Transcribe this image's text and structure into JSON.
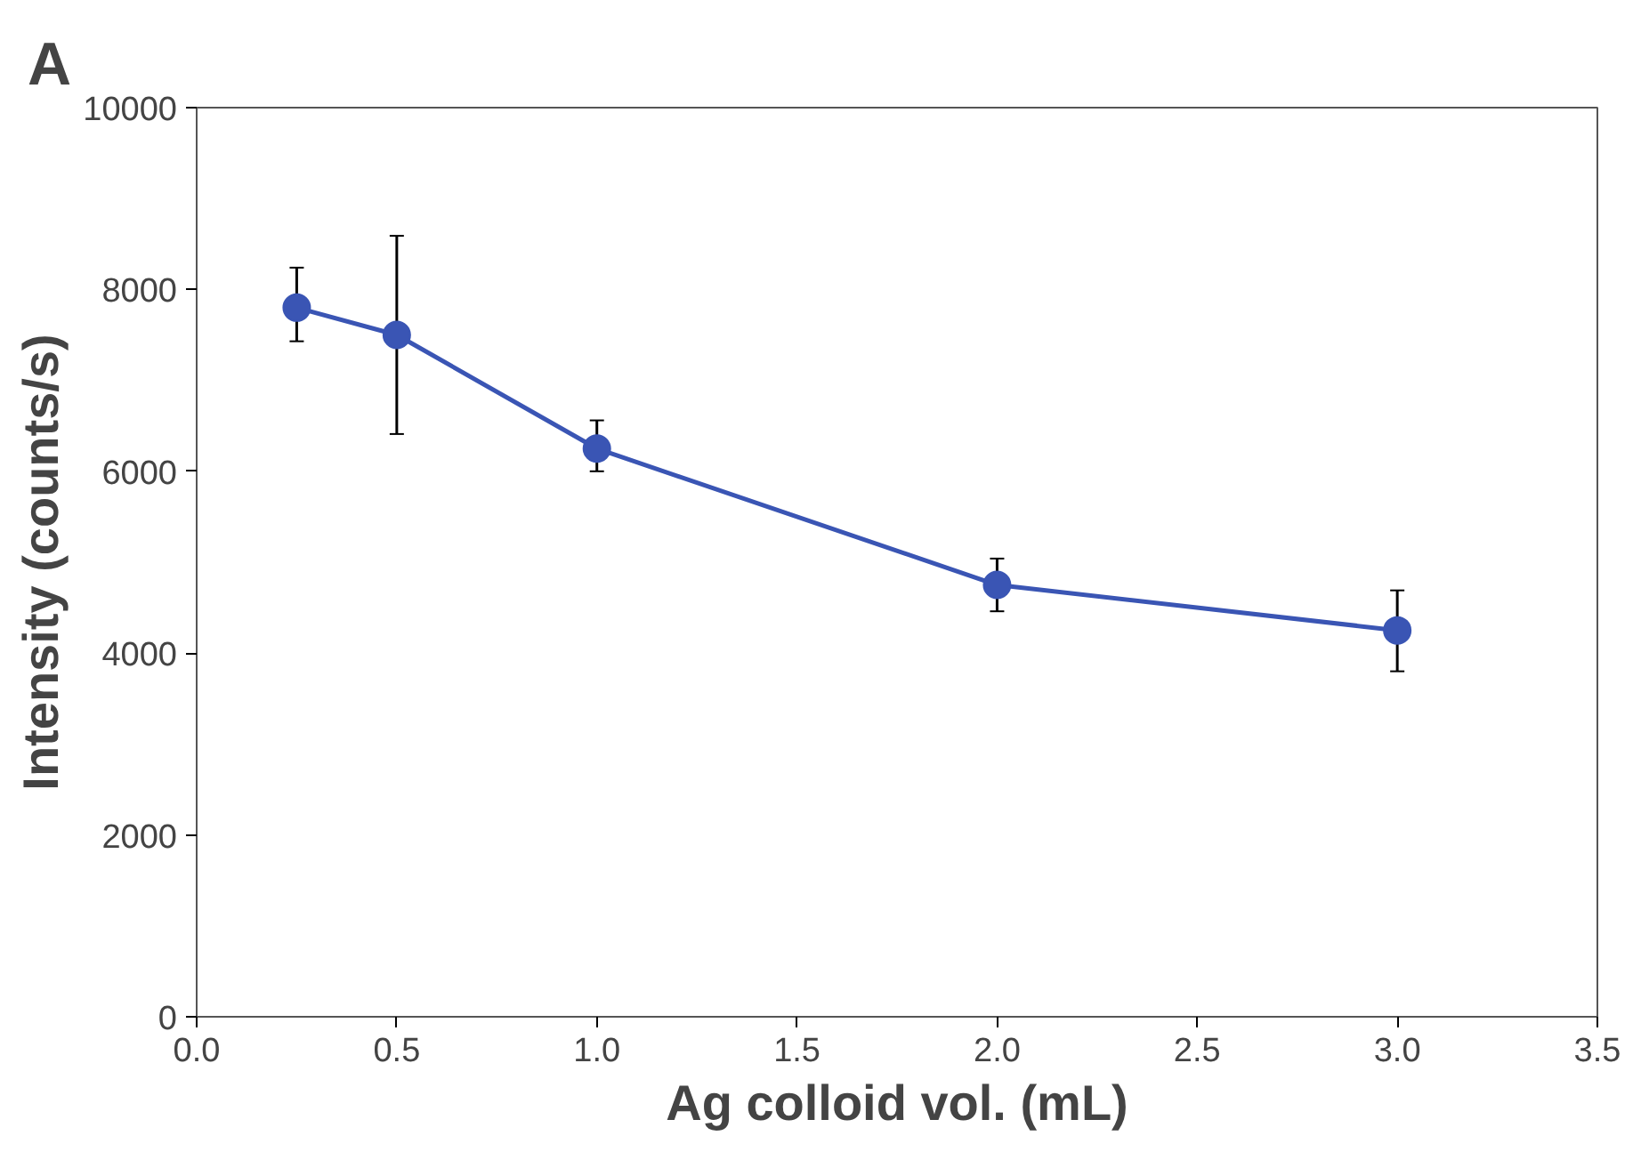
{
  "chart_data": {
    "type": "line",
    "title": "A",
    "xlabel": "Ag colloid vol. (mL)",
    "ylabel": "Intensity (counts/s)",
    "x": [
      0.25,
      0.5,
      1.0,
      2.0,
      3.0
    ],
    "series": [
      {
        "color": "#3a55b4",
        "values": [
          7800,
          7500,
          6250,
          4750,
          4250
        ],
        "errors": [
          [
            7430,
            8240
          ],
          [
            6410,
            8590
          ],
          [
            6000,
            6560
          ],
          [
            4460,
            5040
          ],
          [
            3800,
            4690
          ]
        ]
      }
    ],
    "xlim": [
      0,
      3.5
    ],
    "xticks": [
      {
        "value": 0,
        "label": "0.0"
      },
      0.5,
      {
        "value": 1,
        "label": "1.0"
      },
      1.5,
      {
        "value": 2,
        "label": "2.0"
      },
      2.5,
      {
        "value": 3,
        "label": "3.0"
      },
      3.5
    ],
    "ylim": [
      0,
      10000
    ],
    "yticks": [
      0,
      2000,
      4000,
      6000,
      8000,
      10000
    ],
    "grid": false,
    "marker": "circle",
    "line_style": "solid"
  }
}
